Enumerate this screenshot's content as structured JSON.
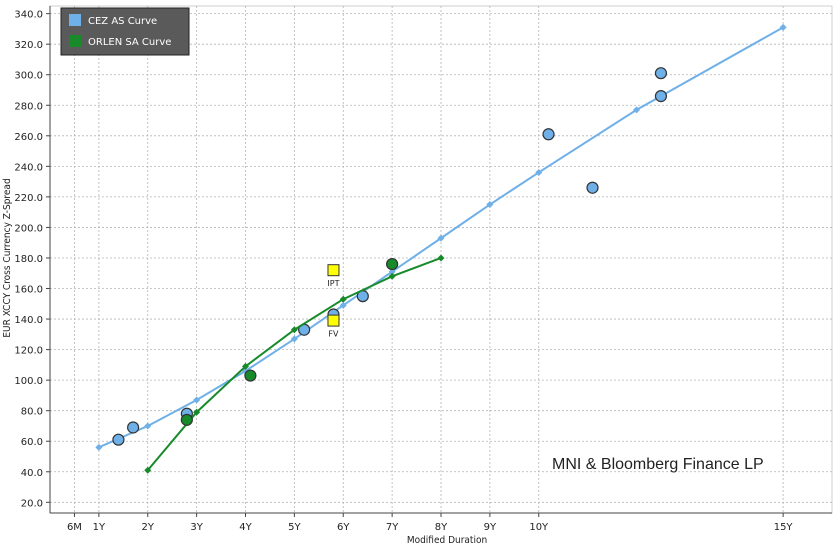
{
  "chart_data": {
    "type": "scatter",
    "xlabel": "Modified Duration",
    "ylabel": "EUR XCCY Cross Currency Z-Spread",
    "xlim": [
      0,
      16
    ],
    "ylim": [
      13,
      345
    ],
    "x_ticks": [
      {
        "value": 0.5,
        "label": "6M"
      },
      {
        "value": 1,
        "label": "1Y"
      },
      {
        "value": 2,
        "label": "2Y"
      },
      {
        "value": 3,
        "label": "3Y"
      },
      {
        "value": 4,
        "label": "4Y"
      },
      {
        "value": 5,
        "label": "5Y"
      },
      {
        "value": 6,
        "label": "6Y"
      },
      {
        "value": 7,
        "label": "7Y"
      },
      {
        "value": 8,
        "label": "8Y"
      },
      {
        "value": 9,
        "label": "9Y"
      },
      {
        "value": 10,
        "label": "10Y"
      },
      {
        "value": 15,
        "label": "15Y"
      }
    ],
    "y_ticks": [
      "20.0",
      "40.0",
      "60.0",
      "80.0",
      "100.0",
      "120.0",
      "140.0",
      "160.0",
      "180.0",
      "200.0",
      "220.0",
      "240.0",
      "260.0",
      "280.0",
      "300.0",
      "320.0",
      "340.0"
    ],
    "y_tick_values": [
      20,
      40,
      60,
      80,
      100,
      120,
      140,
      160,
      180,
      200,
      220,
      240,
      260,
      280,
      300,
      320,
      340
    ],
    "grid": true,
    "legend_position": "top-left",
    "series": [
      {
        "name": "CEZ AS Curve",
        "color": "#6fb0e8",
        "curve": [
          [
            1,
            56
          ],
          [
            2,
            70
          ],
          [
            3,
            87
          ],
          [
            4,
            106
          ],
          [
            5,
            127
          ],
          [
            6,
            149
          ],
          [
            7,
            171
          ],
          [
            8,
            193
          ],
          [
            9,
            215
          ],
          [
            10,
            236
          ],
          [
            12,
            277
          ],
          [
            15,
            331
          ]
        ],
        "bonds": [
          [
            1.4,
            61
          ],
          [
            1.7,
            69
          ],
          [
            2.8,
            78
          ],
          [
            5.2,
            133
          ],
          [
            5.8,
            143
          ],
          [
            6.4,
            155
          ],
          [
            10.2,
            261
          ],
          [
            11.1,
            226
          ],
          [
            12.5,
            286
          ],
          [
            12.5,
            301
          ]
        ]
      },
      {
        "name": "ORLEN SA Curve",
        "color": "#178a2a",
        "curve": [
          [
            2,
            41
          ],
          [
            3,
            79
          ],
          [
            4,
            109
          ],
          [
            5,
            133
          ],
          [
            6,
            153
          ],
          [
            7,
            168
          ],
          [
            8,
            180
          ]
        ],
        "bonds": [
          [
            2.8,
            74
          ],
          [
            4.1,
            103
          ],
          [
            7.0,
            176
          ]
        ]
      }
    ],
    "annotations": [
      {
        "label": "IPT",
        "x": 5.8,
        "y": 172,
        "color": "#ffff00"
      },
      {
        "label": "FV",
        "x": 5.8,
        "y": 139,
        "color": "#ffff00"
      }
    ],
    "watermark": "MNI & Bloomberg Finance LP"
  }
}
